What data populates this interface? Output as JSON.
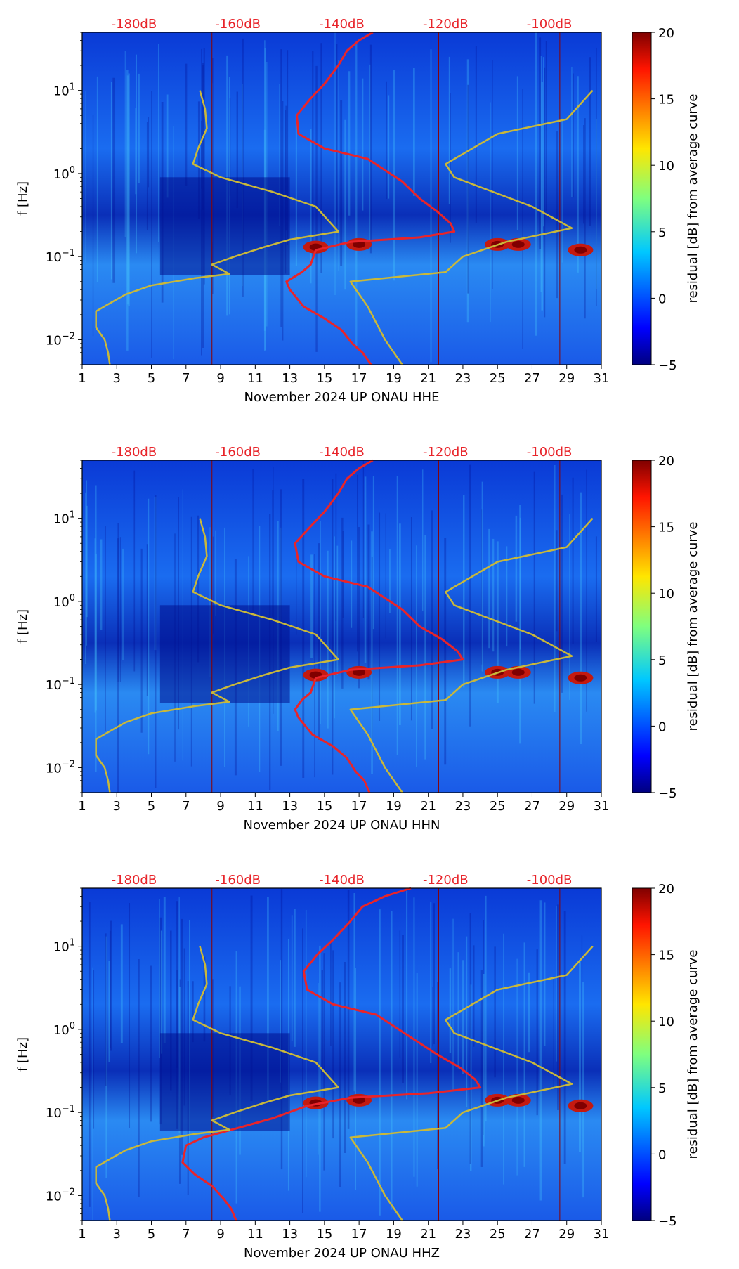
{
  "chart_data": [
    {
      "type": "heatmap",
      "title": "",
      "xlabel": "November 2024 UP ONAU  HHE",
      "ylabel": "f [Hz]",
      "x_ticks": [
        "1",
        "3",
        "5",
        "7",
        "9",
        "11",
        "13",
        "15",
        "17",
        "19",
        "21",
        "23",
        "25",
        "27",
        "29",
        "31"
      ],
      "xlim": [
        1,
        31
      ],
      "ylim": [
        0.005,
        50
      ],
      "y_scale": "log",
      "y_ticks": [
        {
          "value": 10,
          "base": "10",
          "exp": "1"
        },
        {
          "value": 1,
          "base": "10",
          "exp": "0"
        },
        {
          "value": 0.1,
          "base": "10",
          "exp": "−1"
        },
        {
          "value": 0.01,
          "base": "10",
          "exp": "−2"
        }
      ],
      "top_axis_labels": [
        "-180dB",
        "-160dB",
        "-140dB",
        "-120dB",
        "-100dB"
      ],
      "top_axis_positions_day": [
        4,
        10,
        16,
        22,
        28
      ],
      "colorbar": {
        "label": "residual [dB] from average curve",
        "min": -5,
        "max": 20,
        "ticks": [
          "20",
          "15",
          "10",
          "5",
          "0",
          "−5"
        ]
      },
      "series": [
        {
          "name": "average PSD (red)",
          "color": "#e8242a",
          "points": [
            [
              17.8,
              50
            ],
            [
              17,
              40
            ],
            [
              16.3,
              30
            ],
            [
              15.8,
              20
            ],
            [
              15,
              12
            ],
            [
              14.2,
              8
            ],
            [
              13.4,
              5
            ],
            [
              13.5,
              3
            ],
            [
              15,
              2
            ],
            [
              17.5,
              1.5
            ],
            [
              19.5,
              0.8
            ],
            [
              20.5,
              0.5
            ],
            [
              21.5,
              0.35
            ],
            [
              22.3,
              0.25
            ],
            [
              22.5,
              0.2
            ],
            [
              20.5,
              0.17
            ],
            [
              16.5,
              0.15
            ],
            [
              14.5,
              0.12
            ],
            [
              14.2,
              0.08
            ],
            [
              13.7,
              0.065
            ],
            [
              12.8,
              0.05
            ],
            [
              13,
              0.04
            ],
            [
              13.8,
              0.025
            ],
            [
              15,
              0.018
            ],
            [
              16,
              0.013
            ],
            [
              16.6,
              0.009
            ],
            [
              17.2,
              0.007
            ],
            [
              17.7,
              0.005
            ]
          ]
        },
        {
          "name": "noise model bounds (yellow)",
          "color": "#c9b83a",
          "points": [
            [
              7.8,
              10
            ],
            [
              8.1,
              6
            ],
            [
              8.2,
              3.5
            ],
            [
              7.7,
              2
            ],
            [
              7.4,
              1.3
            ],
            [
              9,
              0.9
            ],
            [
              12,
              0.6
            ],
            [
              14.5,
              0.4
            ],
            [
              15.8,
              0.2
            ],
            [
              13,
              0.16
            ],
            [
              11.5,
              0.13
            ],
            [
              9.8,
              0.1
            ],
            [
              8.5,
              0.08
            ],
            [
              9.5,
              0.062
            ],
            [
              7.5,
              0.055
            ],
            [
              5,
              0.045
            ],
            [
              3.5,
              0.035
            ],
            [
              1.8,
              0.022
            ],
            [
              1.8,
              0.014
            ],
            [
              2.3,
              0.01
            ],
            [
              2.5,
              0.007
            ],
            [
              2.6,
              0.005
            ]
          ]
        },
        {
          "name": "noise model bounds 2 (yellow)",
          "color": "#c9b83a",
          "points": [
            [
              30.5,
              10
            ],
            [
              29,
              4.5
            ],
            [
              25,
              3
            ],
            [
              22,
              1.3
            ],
            [
              22.5,
              0.9
            ],
            [
              27,
              0.4
            ],
            [
              29.3,
              0.22
            ],
            [
              25.5,
              0.15
            ],
            [
              23,
              0.1
            ],
            [
              22,
              0.065
            ],
            [
              16.5,
              0.05
            ],
            [
              17.5,
              0.025
            ],
            [
              18.5,
              0.01
            ],
            [
              19.5,
              0.005
            ]
          ]
        }
      ]
    },
    {
      "type": "heatmap",
      "title": "",
      "xlabel": "November 2024 UP ONAU  HHN",
      "ylabel": "f [Hz]",
      "x_ticks": [
        "1",
        "3",
        "5",
        "7",
        "9",
        "11",
        "13",
        "15",
        "17",
        "19",
        "21",
        "23",
        "25",
        "27",
        "29",
        "31"
      ],
      "xlim": [
        1,
        31
      ],
      "ylim": [
        0.005,
        50
      ],
      "y_scale": "log",
      "y_ticks": [
        {
          "value": 10,
          "base": "10",
          "exp": "1"
        },
        {
          "value": 1,
          "base": "10",
          "exp": "0"
        },
        {
          "value": 0.1,
          "base": "10",
          "exp": "−1"
        },
        {
          "value": 0.01,
          "base": "10",
          "exp": "−2"
        }
      ],
      "top_axis_labels": [
        "-180dB",
        "-160dB",
        "-140dB",
        "-120dB",
        "-100dB"
      ],
      "top_axis_positions_day": [
        4,
        10,
        16,
        22,
        28
      ],
      "colorbar": {
        "label": "residual [dB] from average curve",
        "min": -5,
        "max": 20,
        "ticks": [
          "20",
          "15",
          "10",
          "5",
          "0",
          "−5"
        ]
      },
      "series": [
        {
          "name": "average PSD (red)",
          "color": "#e8242a",
          "points": [
            [
              17.8,
              50
            ],
            [
              17,
              40
            ],
            [
              16.3,
              30
            ],
            [
              15.8,
              20
            ],
            [
              15,
              12
            ],
            [
              14.2,
              8
            ],
            [
              13.3,
              5
            ],
            [
              13.5,
              3
            ],
            [
              15,
              2
            ],
            [
              17.5,
              1.5
            ],
            [
              19.5,
              0.8
            ],
            [
              20.5,
              0.5
            ],
            [
              21.8,
              0.35
            ],
            [
              22.7,
              0.25
            ],
            [
              23,
              0.2
            ],
            [
              20.5,
              0.17
            ],
            [
              16.5,
              0.15
            ],
            [
              14.5,
              0.12
            ],
            [
              14.2,
              0.08
            ],
            [
              13.7,
              0.065
            ],
            [
              13.3,
              0.05
            ],
            [
              13.5,
              0.04
            ],
            [
              14.3,
              0.025
            ],
            [
              15.5,
              0.018
            ],
            [
              16.3,
              0.013
            ],
            [
              16.8,
              0.009
            ],
            [
              17.3,
              0.007
            ],
            [
              17.6,
              0.005
            ]
          ]
        },
        {
          "name": "noise model bounds (yellow)",
          "color": "#c9b83a",
          "points": [
            [
              7.8,
              10
            ],
            [
              8.1,
              6
            ],
            [
              8.2,
              3.5
            ],
            [
              7.7,
              2
            ],
            [
              7.4,
              1.3
            ],
            [
              9,
              0.9
            ],
            [
              12,
              0.6
            ],
            [
              14.5,
              0.4
            ],
            [
              15.8,
              0.2
            ],
            [
              13,
              0.16
            ],
            [
              11.5,
              0.13
            ],
            [
              9.8,
              0.1
            ],
            [
              8.5,
              0.08
            ],
            [
              9.5,
              0.062
            ],
            [
              7.5,
              0.055
            ],
            [
              5,
              0.045
            ],
            [
              3.5,
              0.035
            ],
            [
              1.8,
              0.022
            ],
            [
              1.8,
              0.014
            ],
            [
              2.3,
              0.01
            ],
            [
              2.5,
              0.007
            ],
            [
              2.6,
              0.005
            ]
          ]
        },
        {
          "name": "noise model bounds 2 (yellow)",
          "color": "#c9b83a",
          "points": [
            [
              30.5,
              10
            ],
            [
              29,
              4.5
            ],
            [
              25,
              3
            ],
            [
              22,
              1.3
            ],
            [
              22.5,
              0.9
            ],
            [
              27,
              0.4
            ],
            [
              29.3,
              0.22
            ],
            [
              25.5,
              0.15
            ],
            [
              23,
              0.1
            ],
            [
              22,
              0.065
            ],
            [
              16.5,
              0.05
            ],
            [
              17.5,
              0.025
            ],
            [
              18.5,
              0.01
            ],
            [
              19.5,
              0.005
            ]
          ]
        }
      ]
    },
    {
      "type": "heatmap",
      "title": "",
      "xlabel": "November 2024 UP ONAU  HHZ",
      "ylabel": "f [Hz]",
      "x_ticks": [
        "1",
        "3",
        "5",
        "7",
        "9",
        "11",
        "13",
        "15",
        "17",
        "19",
        "21",
        "23",
        "25",
        "27",
        "29",
        "31"
      ],
      "xlim": [
        1,
        31
      ],
      "ylim": [
        0.005,
        50
      ],
      "y_scale": "log",
      "y_ticks": [
        {
          "value": 10,
          "base": "10",
          "exp": "1"
        },
        {
          "value": 1,
          "base": "10",
          "exp": "0"
        },
        {
          "value": 0.1,
          "base": "10",
          "exp": "−1"
        },
        {
          "value": 0.01,
          "base": "10",
          "exp": "−2"
        }
      ],
      "top_axis_labels": [
        "-180dB",
        "-160dB",
        "-140dB",
        "-120dB",
        "-100dB"
      ],
      "top_axis_positions_day": [
        4,
        10,
        16,
        22,
        28
      ],
      "colorbar": {
        "label": "residual [dB] from average curve",
        "min": -5,
        "max": 20,
        "ticks": [
          "20",
          "15",
          "10",
          "5",
          "0",
          "−5"
        ]
      },
      "series": [
        {
          "name": "average PSD (red)",
          "color": "#e8242a",
          "points": [
            [
              20,
              50
            ],
            [
              18.5,
              40
            ],
            [
              17.2,
              30
            ],
            [
              16.5,
              20
            ],
            [
              15.5,
              12
            ],
            [
              14.6,
              8
            ],
            [
              13.8,
              5
            ],
            [
              14,
              3
            ],
            [
              15.5,
              2
            ],
            [
              18,
              1.5
            ],
            [
              20,
              0.8
            ],
            [
              21.5,
              0.5
            ],
            [
              22.8,
              0.35
            ],
            [
              23.7,
              0.25
            ],
            [
              24,
              0.2
            ],
            [
              21,
              0.17
            ],
            [
              16.5,
              0.15
            ],
            [
              14,
              0.12
            ],
            [
              12,
              0.085
            ],
            [
              10,
              0.065
            ],
            [
              8,
              0.05
            ],
            [
              7,
              0.04
            ],
            [
              6.8,
              0.025
            ],
            [
              7.5,
              0.018
            ],
            [
              8.5,
              0.013
            ],
            [
              9.2,
              0.009
            ],
            [
              9.6,
              0.007
            ],
            [
              9.9,
              0.005
            ]
          ]
        },
        {
          "name": "noise model bounds (yellow)",
          "color": "#c9b83a",
          "points": [
            [
              7.8,
              10
            ],
            [
              8.1,
              6
            ],
            [
              8.2,
              3.5
            ],
            [
              7.7,
              2
            ],
            [
              7.4,
              1.3
            ],
            [
              9,
              0.9
            ],
            [
              12,
              0.6
            ],
            [
              14.5,
              0.4
            ],
            [
              15.8,
              0.2
            ],
            [
              13,
              0.16
            ],
            [
              11.5,
              0.13
            ],
            [
              9.8,
              0.1
            ],
            [
              8.5,
              0.08
            ],
            [
              9.5,
              0.062
            ],
            [
              7.5,
              0.055
            ],
            [
              5,
              0.045
            ],
            [
              3.5,
              0.035
            ],
            [
              1.8,
              0.022
            ],
            [
              1.8,
              0.014
            ],
            [
              2.3,
              0.01
            ],
            [
              2.5,
              0.007
            ],
            [
              2.6,
              0.005
            ]
          ]
        },
        {
          "name": "noise model bounds 2 (yellow)",
          "color": "#c9b83a",
          "points": [
            [
              30.5,
              10
            ],
            [
              29,
              4.5
            ],
            [
              25,
              3
            ],
            [
              22,
              1.3
            ],
            [
              22.5,
              0.9
            ],
            [
              27,
              0.4
            ],
            [
              29.3,
              0.22
            ],
            [
              25.5,
              0.15
            ],
            [
              23,
              0.1
            ],
            [
              22,
              0.065
            ],
            [
              16.5,
              0.05
            ],
            [
              17.5,
              0.025
            ],
            [
              18.5,
              0.01
            ],
            [
              19.5,
              0.005
            ]
          ]
        }
      ]
    }
  ]
}
